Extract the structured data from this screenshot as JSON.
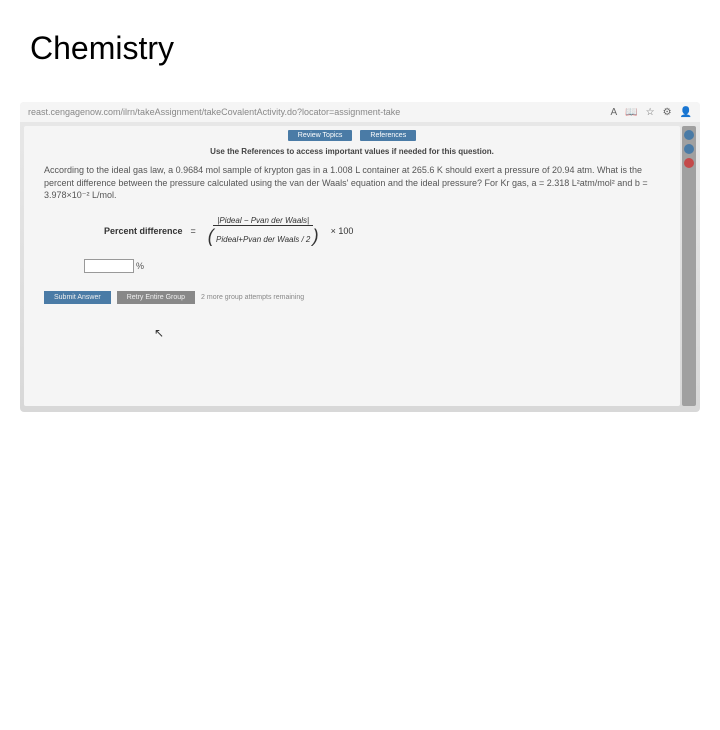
{
  "page": {
    "title": "Chemistry"
  },
  "browser": {
    "url": "reast.cengagenow.com/ilrn/takeAssignment/takeCovalentActivity.do?locator=assignment-take",
    "icon_text_aa": "A",
    "icon_star": "☆",
    "icon_gear": "⚙"
  },
  "topbar": {
    "review": "Review Topics",
    "references": "References"
  },
  "instruction": "Use the References to access important values if needed for this question.",
  "problem": {
    "line1": "According to the ideal gas law, a 0.9684 mol sample of krypton gas in a 1.008 L container at 265.6 K should exert a pressure of 20.94 atm. What is the",
    "line2": "percent difference between the pressure calculated using the van der Waals' equation and the ideal pressure? For Kr gas, a = 2.318 L²atm/mol² and b =",
    "line3": "3.978×10⁻² L/mol."
  },
  "formula": {
    "label": "Percent difference",
    "equals": "=",
    "numerator": "|Pideal − Pvan der Waals|",
    "denominator": "Pideal+Pvan der Waals / 2",
    "multiply": "× 100"
  },
  "input": {
    "percent": "%"
  },
  "buttons": {
    "submit": "Submit Answer",
    "retry": "Retry Entire Group",
    "attempts": "2 more group attempts remaining"
  }
}
